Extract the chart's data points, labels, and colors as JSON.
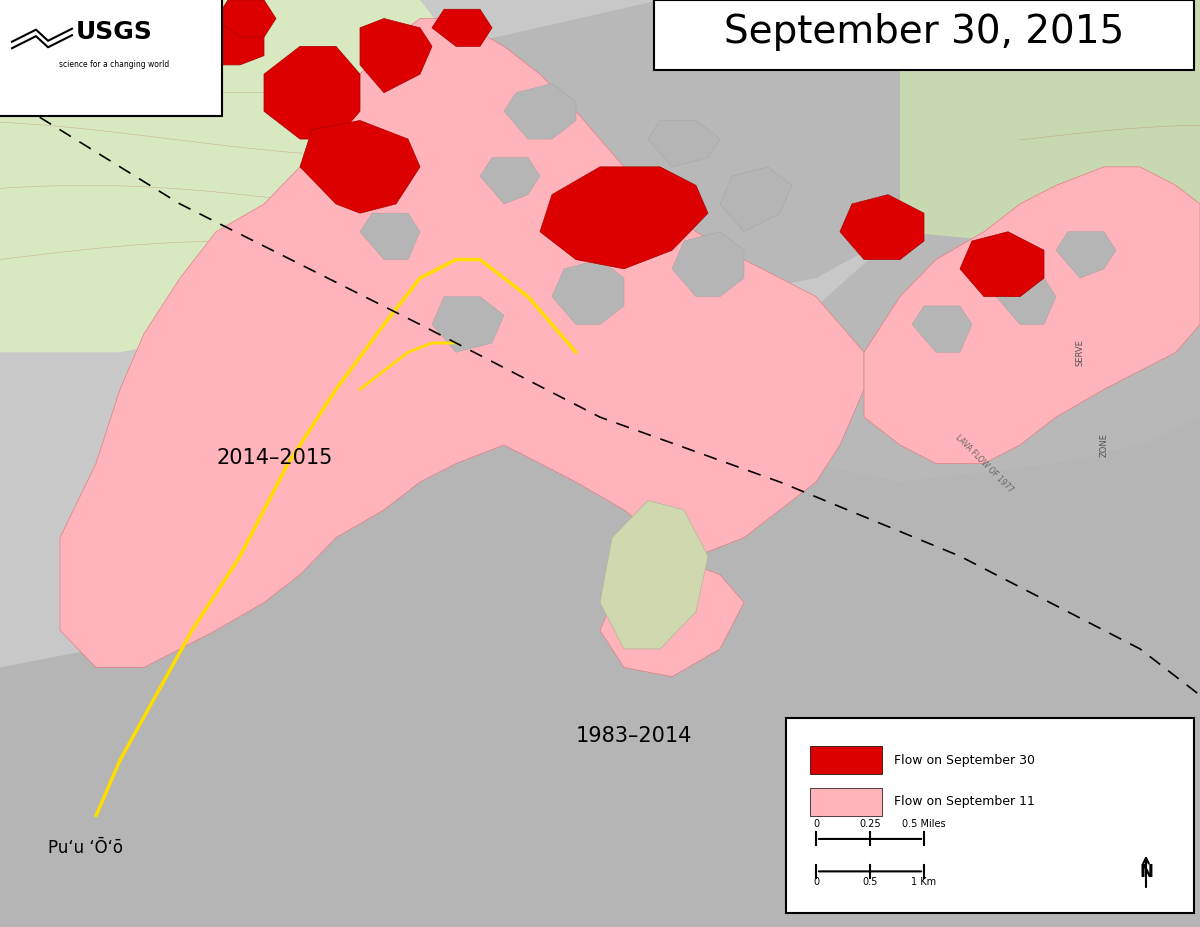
{
  "title": "September 30, 2015",
  "title_fontsize": 28,
  "title_box_color": "#ffffff",
  "background_map_color": "#d4e8c2",
  "gray_base_color": "#b0b0b0",
  "pink_flow_color": "#ffb3ba",
  "red_flow_color": "#dd0000",
  "yellow_tube_color": "#ffff00",
  "label_2014_2015": "2014–2015",
  "label_1983_2014": "1983–2014",
  "label_puu_oo": "Puʻu ʻŌʻō",
  "legend_red_label": "Flow on September 30",
  "legend_pink_label": "Flow on September 11",
  "scale_miles": "0      0.25      0.5 Miles",
  "scale_km": "0        0.5        1 Km",
  "fig_width": 12.0,
  "fig_height": 9.27,
  "dpi": 100
}
